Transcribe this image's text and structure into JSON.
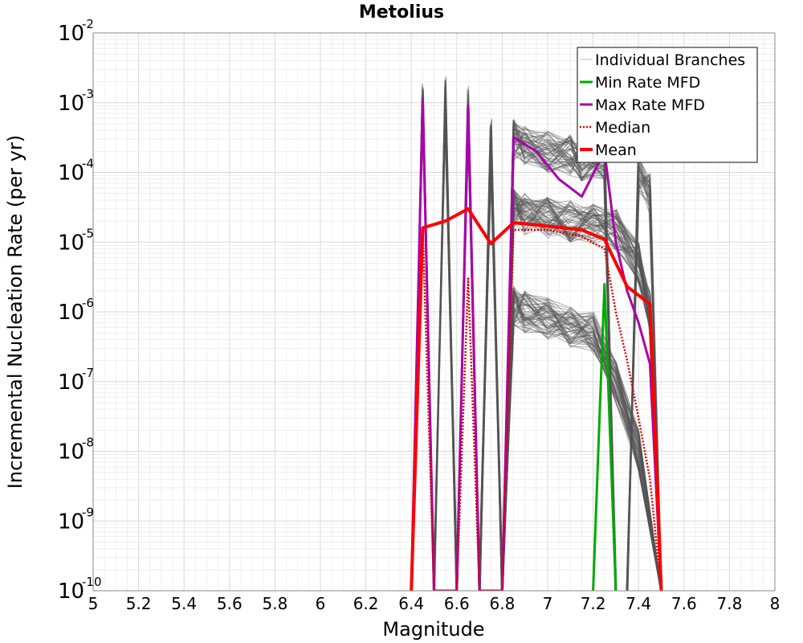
{
  "chart_data": {
    "type": "line",
    "title": "Metolius",
    "xlabel": "Magnitude",
    "ylabel": "Incremental Nucleation Rate (per yr)",
    "xlim": [
      5,
      8
    ],
    "ylim": [
      1e-10,
      0.01
    ],
    "yscale": "log",
    "grid": true,
    "legend_position": "top-right",
    "x_ticks": [
      "5",
      "5.2",
      "5.4",
      "5.6",
      "5.8",
      "6",
      "6.2",
      "6.4",
      "6.6",
      "6.8",
      "7",
      "7.2",
      "7.4",
      "7.6",
      "7.8",
      "8"
    ],
    "y_ticks": [
      {
        "base": "10",
        "exp": "-10"
      },
      {
        "base": "10",
        "exp": "-9"
      },
      {
        "base": "10",
        "exp": "-8"
      },
      {
        "base": "10",
        "exp": "-7"
      },
      {
        "base": "10",
        "exp": "-6"
      },
      {
        "base": "10",
        "exp": "-5"
      },
      {
        "base": "10",
        "exp": "-4"
      },
      {
        "base": "10",
        "exp": "-3"
      },
      {
        "base": "10",
        "exp": "-2"
      }
    ],
    "legend": [
      {
        "label": "Individual Branches",
        "color": "#c0c0c0",
        "style": "solid-thin"
      },
      {
        "label": "Min Rate MFD",
        "color": "#00aa00",
        "style": "solid"
      },
      {
        "label": "Max Rate MFD",
        "color": "#aa00aa",
        "style": "solid"
      },
      {
        "label": "Median",
        "color": "#dd0000",
        "style": "dotted"
      },
      {
        "label": "Mean",
        "color": "#ff0000",
        "style": "solid-thick"
      }
    ],
    "series": [
      {
        "name": "Individual Branches",
        "color": "#555555",
        "groups": [
          {
            "count": 40,
            "points": [
              [
                6.4,
                1e-10
              ],
              [
                6.45,
                0.001
              ],
              [
                6.5,
                1e-10
              ]
            ]
          },
          {
            "count": 40,
            "points": [
              [
                6.5,
                1e-10
              ],
              [
                6.55,
                0.0012
              ],
              [
                6.6,
                1e-10
              ]
            ]
          },
          {
            "count": 40,
            "points": [
              [
                6.6,
                1e-10
              ],
              [
                6.65,
                0.0009
              ],
              [
                6.7,
                1e-10
              ]
            ]
          },
          {
            "count": 60,
            "points": [
              [
                6.7,
                1e-10
              ],
              [
                6.75,
                0.0003
              ],
              [
                6.8,
                1e-10
              ]
            ]
          },
          {
            "count": 60,
            "points": [
              [
                6.8,
                1e-10
              ],
              [
                6.85,
                0.0003
              ],
              [
                6.9,
                0.00025
              ],
              [
                7.0,
                0.0002
              ],
              [
                7.1,
                0.00018
              ],
              [
                7.15,
                0.00015
              ],
              [
                7.25,
                0.00015
              ],
              [
                7.3,
                1e-10
              ]
            ]
          },
          {
            "count": 60,
            "points": [
              [
                6.8,
                1e-10
              ],
              [
                6.85,
                3e-05
              ],
              [
                6.9,
                2.5e-05
              ],
              [
                7.0,
                2.2e-05
              ],
              [
                7.1,
                2e-05
              ],
              [
                7.2,
                1.8e-05
              ],
              [
                7.3,
                1.5e-05
              ],
              [
                7.4,
                5e-06
              ],
              [
                7.45,
                1e-06
              ],
              [
                7.5,
                1e-10
              ]
            ]
          },
          {
            "count": 60,
            "points": [
              [
                6.8,
                1e-10
              ],
              [
                6.85,
                1.2e-06
              ],
              [
                6.9,
                1e-06
              ],
              [
                7.0,
                8e-07
              ],
              [
                7.1,
                6e-07
              ],
              [
                7.2,
                5e-07
              ],
              [
                7.3,
                1e-07
              ],
              [
                7.4,
                1e-08
              ],
              [
                7.5,
                1e-10
              ]
            ]
          },
          {
            "count": 40,
            "points": [
              [
                7.35,
                1e-10
              ],
              [
                7.4,
                0.0001
              ],
              [
                7.45,
                5e-05
              ],
              [
                7.5,
                1e-10
              ]
            ]
          }
        ]
      },
      {
        "name": "Min Rate MFD",
        "color": "#00aa00",
        "points": [
          [
            7.2,
            1e-10
          ],
          [
            7.25,
            2.5e-06
          ],
          [
            7.3,
            1e-10
          ]
        ]
      },
      {
        "name": "Max Rate MFD",
        "color": "#aa00aa",
        "points": [
          [
            6.4,
            1e-10
          ],
          [
            6.45,
            0.0011
          ],
          [
            6.5,
            1e-10
          ],
          [
            6.6,
            1e-10
          ],
          [
            6.65,
            0.0009
          ],
          [
            6.7,
            1e-10
          ],
          [
            6.8,
            1e-10
          ],
          [
            6.85,
            0.00032
          ],
          [
            6.95,
            0.0002
          ],
          [
            7.05,
            8e-05
          ],
          [
            7.15,
            4.5e-05
          ],
          [
            7.25,
            0.0002
          ],
          [
            7.3,
            1e-05
          ],
          [
            7.35,
            2e-06
          ],
          [
            7.4,
            7e-07
          ],
          [
            7.45,
            1.8e-07
          ],
          [
            7.5,
            1e-10
          ]
        ]
      },
      {
        "name": "Median",
        "color": "#dd0000",
        "points": [
          [
            6.4,
            1e-10
          ],
          [
            6.45,
            1.6e-05
          ],
          [
            6.5,
            1e-10
          ],
          [
            6.6,
            1e-10
          ],
          [
            6.65,
            3e-06
          ],
          [
            6.7,
            1e-10
          ],
          [
            6.8,
            1e-10
          ],
          [
            6.85,
            1.5e-05
          ],
          [
            7.0,
            1.5e-05
          ],
          [
            7.15,
            1.2e-05
          ],
          [
            7.25,
            8e-06
          ],
          [
            7.3,
            1e-06
          ],
          [
            7.35,
            2e-07
          ],
          [
            7.4,
            3e-08
          ],
          [
            7.45,
            4e-09
          ],
          [
            7.5,
            1e-10
          ]
        ]
      },
      {
        "name": "Mean",
        "color": "#ff0000",
        "points": [
          [
            6.4,
            1e-10
          ],
          [
            6.45,
            1.6e-05
          ],
          [
            6.55,
            2e-05
          ],
          [
            6.65,
            3e-05
          ],
          [
            6.75,
            9.5e-06
          ],
          [
            6.85,
            1.9e-05
          ],
          [
            7.0,
            1.7e-05
          ],
          [
            7.15,
            1.5e-05
          ],
          [
            7.25,
            1.1e-05
          ],
          [
            7.35,
            2.3e-06
          ],
          [
            7.45,
            1.3e-06
          ],
          [
            7.5,
            1e-10
          ]
        ]
      }
    ]
  }
}
